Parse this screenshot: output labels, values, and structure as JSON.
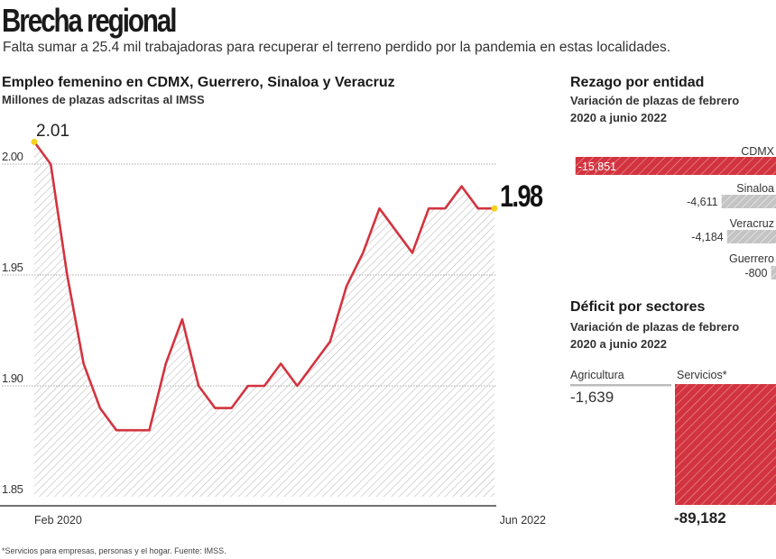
{
  "header": {
    "title": "Brecha regional",
    "subtitle": "Falta sumar a 25.4 mil trabajadoras para recuperar el terreno perdido por la pandemia en estas localidades."
  },
  "footnote": "*Servicios para empresas, personas y el hogar. Fuente: IMSS.",
  "colors": {
    "line": "#d2343f",
    "bar_primary": "#d2343f",
    "bar_secondary": "#bdbdbd",
    "marker": "#f5d020"
  },
  "chart_data": [
    {
      "type": "line",
      "title": "Empleo femenino en CDMX, Guerrero, Sinaloa y Veracruz",
      "subtitle": "Millones de plazas adscritas al IMSS",
      "x_start_label": "Feb 2020",
      "x_end_label": "Jun 2022",
      "values": [
        2.01,
        2.0,
        1.95,
        1.91,
        1.89,
        1.88,
        1.88,
        1.88,
        1.91,
        1.93,
        1.9,
        1.89,
        1.89,
        1.9,
        1.9,
        1.91,
        1.9,
        1.91,
        1.92,
        1.945,
        1.96,
        1.98,
        1.97,
        1.96,
        1.98,
        1.98,
        1.99,
        1.98,
        1.98
      ],
      "yticks": [
        "1.85",
        "1.90",
        "1.95",
        "2.00"
      ],
      "ylim": [
        1.85,
        2.015
      ],
      "grid": true,
      "fill": "hatched",
      "annotations": {
        "start": "2.01",
        "end": "1.98"
      }
    },
    {
      "type": "bar",
      "orientation": "horizontal",
      "title": "Rezago por entidad",
      "subtitle": "Variación de plazas de febrero 2020 a junio 2022",
      "categories": [
        "CDMX",
        "Sinaloa",
        "Veracruz",
        "Guerrero"
      ],
      "values": [
        -15851,
        -4611,
        -4184,
        -800
      ],
      "labels": [
        "-15,851",
        "-4,611",
        "-4,184",
        "-800"
      ]
    },
    {
      "type": "bar",
      "title": "Déficit por sectores",
      "subtitle": "Variación de plazas de febrero 2020 a junio 2022",
      "categories": [
        "Agricultura",
        "Servicios*"
      ],
      "values": [
        -1639,
        -89182
      ],
      "labels": [
        "-1,639",
        "-89,182"
      ]
    }
  ]
}
